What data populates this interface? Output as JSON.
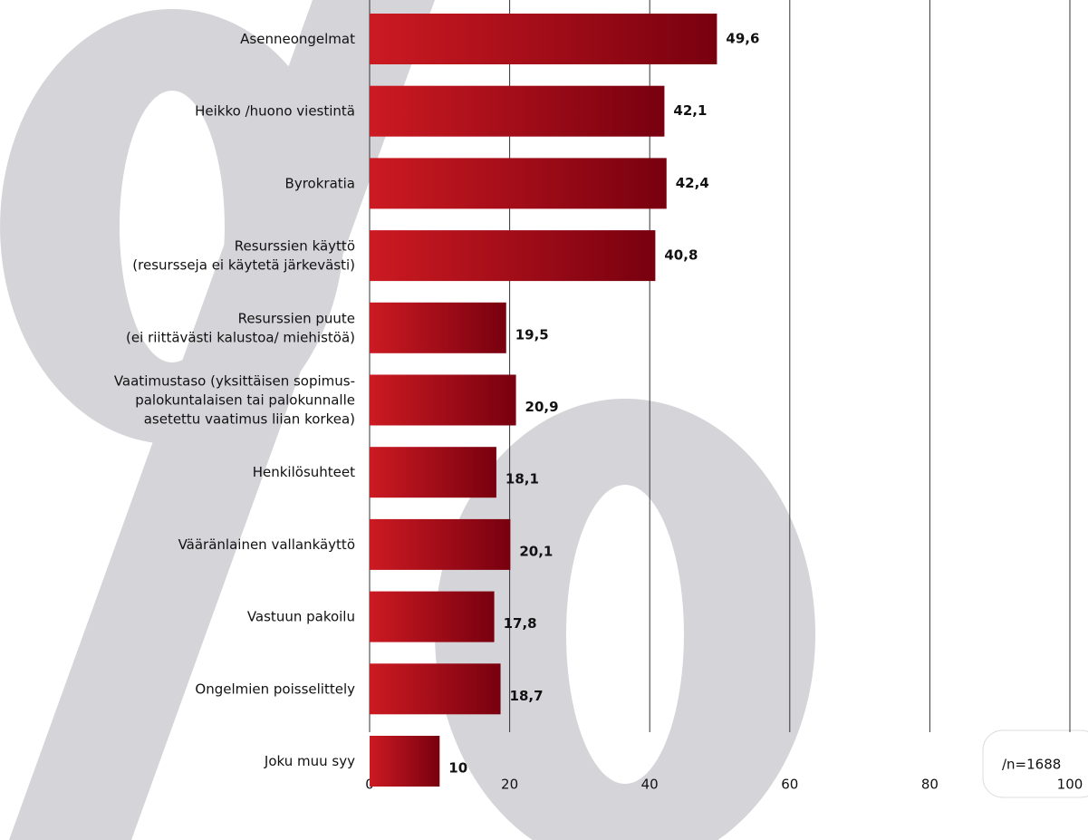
{
  "chart_data": {
    "type": "bar",
    "orientation": "horizontal",
    "categories": [
      "Asenneongelmat",
      "Heikko /huono viestintä",
      "Byrokratia",
      "Resurssien käyttö\n(resursseja ei käytetä järkevästi)",
      "Resurssien puute\n(ei riittävästi kalustoa/ miehistöä)",
      "Vaatimustaso (yksittäisen sopimus-\npalokuntalaisen tai palokunnalle\nasetettu vaatimus liian korkea)",
      "Henkilösuhteet",
      "Vääränlainen vallankäyttö",
      "Vastuun pakoilu",
      "Ongelmien poisselittely",
      "Joku muu syy"
    ],
    "values": [
      49.6,
      42.1,
      42.4,
      40.8,
      19.5,
      20.9,
      18.1,
      20.1,
      17.8,
      18.7,
      10
    ],
    "value_labels": [
      "49,6",
      "42,1",
      "42,4",
      "40,8",
      "19,5",
      "20,9",
      "18,1",
      "20,1",
      "17,8",
      "18,7",
      "10"
    ],
    "color": [
      "#cc1a22",
      "#78000f"
    ],
    "xlim": [
      0,
      100
    ],
    "xticks": [
      0,
      20,
      40,
      60,
      80,
      100
    ],
    "grid": true,
    "annotation": "/n=1688"
  }
}
